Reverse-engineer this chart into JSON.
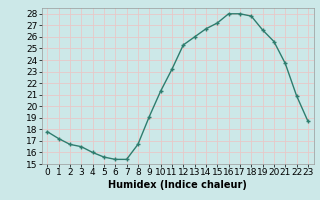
{
  "x": [
    0,
    1,
    2,
    3,
    4,
    5,
    6,
    7,
    8,
    9,
    10,
    11,
    12,
    13,
    14,
    15,
    16,
    17,
    18,
    19,
    20,
    21,
    22,
    23
  ],
  "y": [
    17.8,
    17.2,
    16.7,
    16.5,
    16.0,
    15.6,
    15.4,
    15.4,
    16.7,
    19.1,
    21.3,
    23.2,
    25.3,
    26.0,
    26.7,
    27.2,
    28.0,
    28.0,
    27.8,
    26.6,
    25.6,
    23.7,
    20.9,
    18.7
  ],
  "xlabel": "Humidex (Indice chaleur)",
  "ylim": [
    15,
    28.5
  ],
  "yticks": [
    15,
    16,
    17,
    18,
    19,
    20,
    21,
    22,
    23,
    24,
    25,
    26,
    27,
    28
  ],
  "xlim": [
    -0.5,
    23.5
  ],
  "xticks": [
    0,
    1,
    2,
    3,
    4,
    5,
    6,
    7,
    8,
    9,
    10,
    11,
    12,
    13,
    14,
    15,
    16,
    17,
    18,
    19,
    20,
    21,
    22,
    23
  ],
  "line_color": "#2e7d6e",
  "marker": "+",
  "bg_color": "#cce8e8",
  "grid_color": "#e8c8c8",
  "xlabel_fontsize": 7,
  "tick_fontsize": 6.5
}
